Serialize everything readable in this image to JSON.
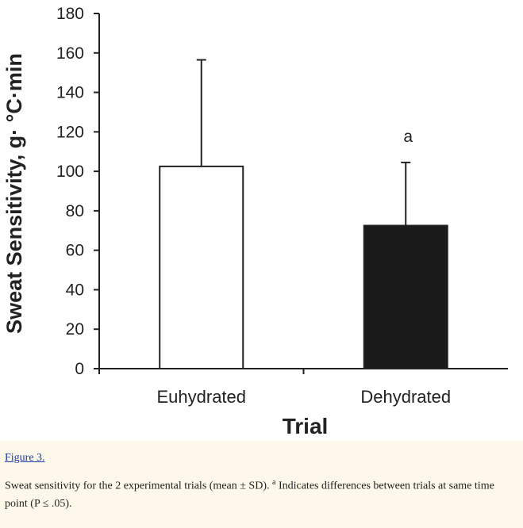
{
  "figure": {
    "link_label": "Figure 3.",
    "caption_part1": "Sweat sensitivity for the 2 experimental trials (mean ± SD). ",
    "caption_sup": "a",
    "caption_part2": " Indicates differences between trials at same time point (P ≤ .05)."
  },
  "chart_data": {
    "type": "bar",
    "categories": [
      "Euhydrated",
      "Dehydrated"
    ],
    "series": [
      {
        "values": [
          102.5,
          72.5
        ],
        "sd": [
          54,
          32
        ],
        "colors": [
          "#ffffff",
          "#1a1a1a"
        ],
        "annotations": [
          "",
          "a"
        ]
      }
    ],
    "title": "",
    "xlabel": "Trial",
    "ylabel": "Sweat Sensitivity, g· °C·min",
    "ylim": [
      0,
      180
    ],
    "yticks": [
      0,
      20,
      40,
      60,
      80,
      100,
      120,
      140,
      160,
      180
    ],
    "grid": false,
    "legend": "none"
  }
}
